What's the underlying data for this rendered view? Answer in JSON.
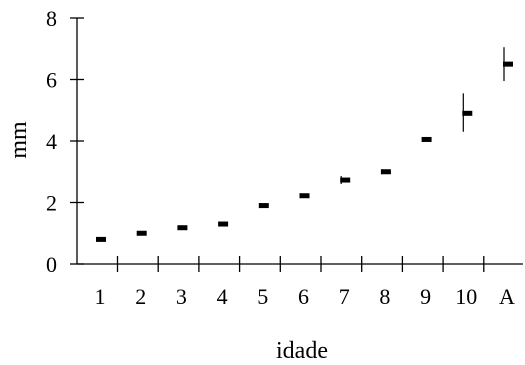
{
  "chart_data": {
    "type": "scatter",
    "title": "",
    "xlabel": "idade",
    "ylabel": "mm",
    "ylim": [
      0,
      8
    ],
    "yticks": [
      0,
      2,
      4,
      6,
      8
    ],
    "grid": false,
    "categories": [
      "1",
      "2",
      "3",
      "4",
      "5",
      "6",
      "7",
      "8",
      "9",
      "10",
      "A"
    ],
    "series": [
      {
        "values": [
          0.8,
          1.0,
          1.18,
          1.3,
          1.9,
          2.22,
          2.73,
          3.0,
          4.05,
          4.9,
          6.5
        ],
        "error_low": [
          0.75,
          0.95,
          1.12,
          1.24,
          1.82,
          2.15,
          2.6,
          2.92,
          4.0,
          4.3,
          5.95
        ],
        "error_high": [
          0.85,
          1.05,
          1.24,
          1.36,
          1.98,
          2.3,
          2.86,
          3.08,
          4.12,
          5.55,
          7.05
        ]
      }
    ]
  }
}
